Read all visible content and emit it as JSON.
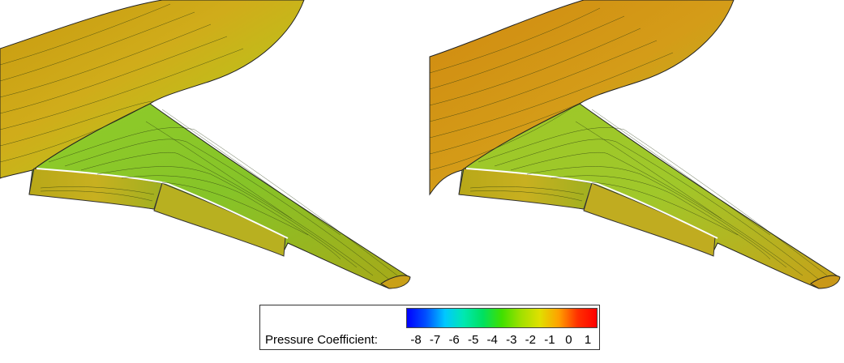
{
  "colorbar": {
    "label": "Pressure Coefficient:",
    "min": -8,
    "max": 1,
    "ticks": [
      "-8",
      "-7",
      "-6",
      "-5",
      "-4",
      "-3",
      "-2",
      "-1",
      "0",
      "1"
    ],
    "colors": [
      "#0000ff",
      "#0050ff",
      "#00c8ff",
      "#00e8b0",
      "#00e060",
      "#40e000",
      "#a0e000",
      "#e0e000",
      "#ffa000",
      "#ff3000",
      "#ff0000"
    ]
  },
  "views": [
    "left-wing-view",
    "right-wing-view"
  ]
}
